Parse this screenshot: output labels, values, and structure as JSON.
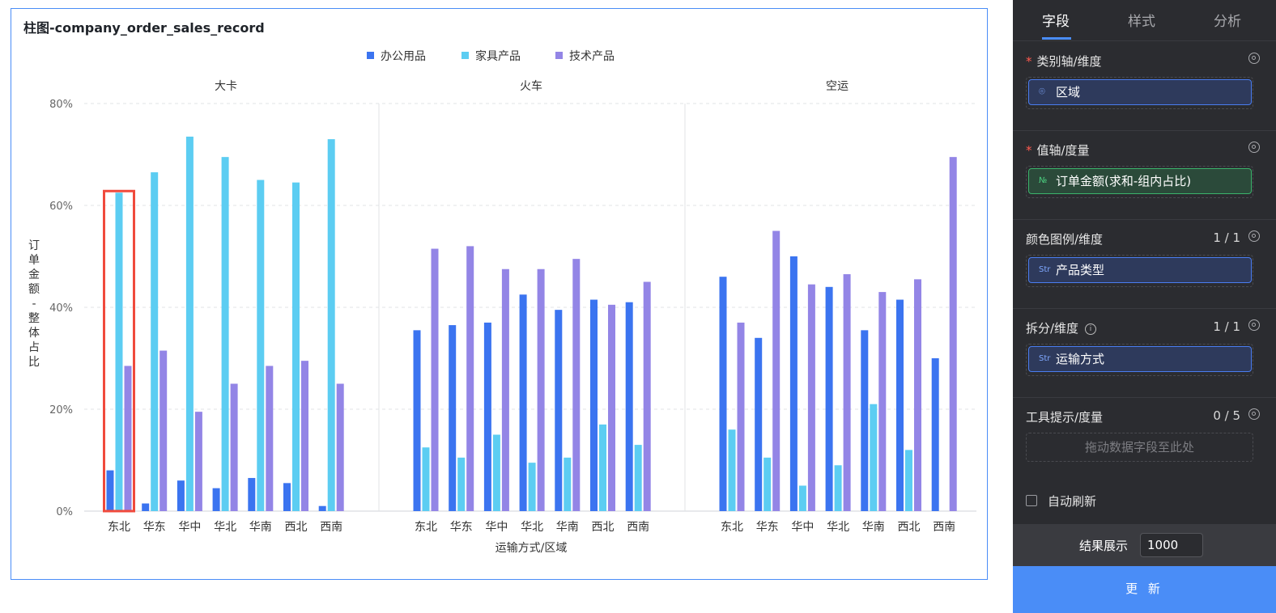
{
  "chart_title": "柱图-company_order_sales_record",
  "chart_data": {
    "type": "bar",
    "title": "柱图-company_order_sales_record",
    "xlabel": "运输方式/区域",
    "ylabel": "订单金额-整体占比",
    "ylim": [
      0,
      80
    ],
    "yticks": [
      "0%",
      "20%",
      "40%",
      "60%",
      "80%"
    ],
    "legend_position": "top-center",
    "grid": true,
    "series": [
      {
        "name": "办公用品",
        "color": "#3b74f0"
      },
      {
        "name": "家具产品",
        "color": "#5ccdf2"
      },
      {
        "name": "技术产品",
        "color": "#9385e6"
      }
    ],
    "categories": [
      "东北",
      "华东",
      "华中",
      "华北",
      "华南",
      "西北",
      "西南"
    ],
    "facets": [
      {
        "name": "大卡",
        "values": [
          [
            8,
            62.5,
            28.5
          ],
          [
            1.5,
            66.5,
            31.5
          ],
          [
            6,
            73.5,
            19.5
          ],
          [
            4.5,
            69.5,
            25
          ],
          [
            6.5,
            65,
            28.5
          ],
          [
            5.5,
            64.5,
            29.5
          ],
          [
            1,
            73,
            25
          ]
        ]
      },
      {
        "name": "火车",
        "values": [
          [
            35.5,
            12.5,
            51.5
          ],
          [
            36.5,
            10.5,
            52
          ],
          [
            37,
            15,
            47.5
          ],
          [
            42.5,
            9.5,
            47.5
          ],
          [
            39.5,
            10.5,
            49.5
          ],
          [
            41.5,
            17,
            40.5
          ],
          [
            41,
            13,
            45
          ]
        ]
      },
      {
        "name": "空运",
        "values": [
          [
            46,
            16,
            37
          ],
          [
            34,
            10.5,
            55
          ],
          [
            50,
            5,
            44.5
          ],
          [
            44,
            9,
            46.5
          ],
          [
            35.5,
            21,
            43
          ],
          [
            41.5,
            12,
            45.5
          ],
          [
            30,
            0,
            69.5
          ]
        ]
      }
    ],
    "highlight": {
      "facet": "大卡",
      "category": "东北"
    }
  },
  "panel": {
    "tabs": [
      "字段",
      "样式",
      "分析"
    ],
    "active_tab": "字段",
    "sections": {
      "category_axis": {
        "title": "类别轴/维度",
        "field": "区域",
        "icon": "location-pin-icon"
      },
      "value_axis": {
        "title": "值轴/度量",
        "field": "订单金额(求和-组内占比)",
        "icon_text": "№"
      },
      "color_legend": {
        "title": "颜色图例/维度",
        "count": "1 / 1",
        "field": "产品类型",
        "icon_text": "Str"
      },
      "split": {
        "title": "拆分/维度",
        "count": "1 / 1",
        "field": "运输方式",
        "icon_text": "Str"
      },
      "tooltip": {
        "title": "工具提示/度量",
        "count": "0 / 5",
        "placeholder": "拖动数据字段至此处"
      }
    },
    "auto_refresh_label": "自动刷新",
    "result_label": "结果展示",
    "result_value": "1000",
    "update_button": "更 新"
  }
}
